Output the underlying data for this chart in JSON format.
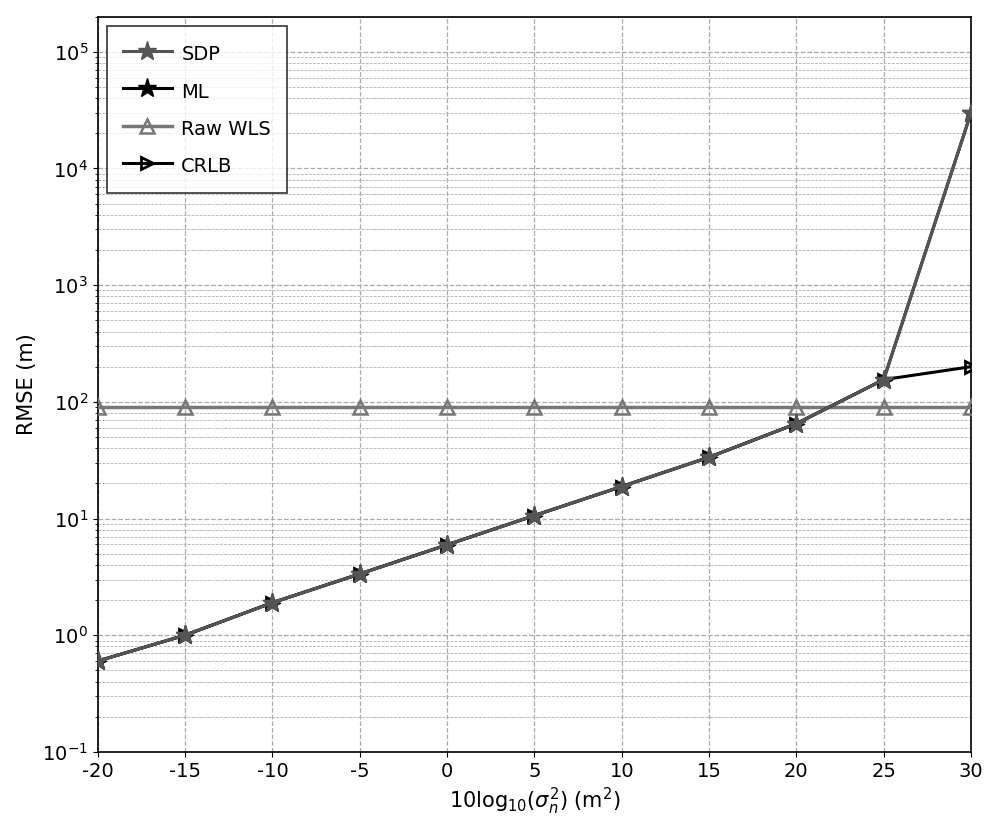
{
  "x": [
    -20,
    -15,
    -10,
    -5,
    0,
    5,
    10,
    15,
    20,
    25,
    30
  ],
  "sdp": [
    0.6,
    1.0,
    1.9,
    3.35,
    5.95,
    10.6,
    18.8,
    33.5,
    65,
    155,
    30000
  ],
  "ml": [
    0.6,
    1.0,
    1.9,
    3.35,
    5.95,
    10.6,
    18.8,
    33.5,
    65,
    155,
    30000
  ],
  "raw_wls": [
    90,
    90,
    90,
    90,
    90,
    90,
    90,
    90,
    90,
    90,
    90
  ],
  "crlb": [
    0.6,
    1.0,
    1.9,
    3.35,
    5.95,
    10.6,
    18.8,
    33.5,
    65,
    155,
    200
  ],
  "xlabel": "10log$_{10}$($\\sigma_n^2$) (m$^2$)",
  "ylabel": "RMSE (m)",
  "ylim_bottom": 0.1,
  "ylim_top": 200000,
  "xlim_left": -20,
  "xlim_right": 30,
  "xticks": [
    -20,
    -15,
    -10,
    -5,
    0,
    5,
    10,
    15,
    20,
    25,
    30
  ],
  "legend_labels": [
    "SDP",
    "ML",
    "Raw WLS",
    "CRLB"
  ],
  "line_color_sdp": "#555555",
  "line_color_ml": "#000000",
  "line_color_raw_wls": "#777777",
  "line_color_crlb": "#000000",
  "grid_color": "#aaaaaa",
  "bg_color": "#ffffff"
}
